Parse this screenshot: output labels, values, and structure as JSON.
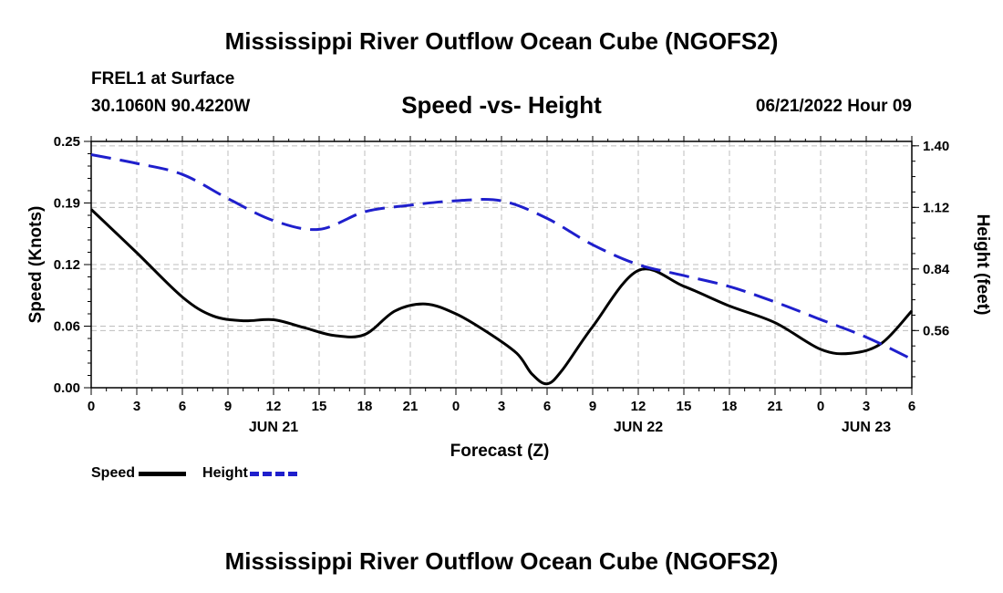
{
  "header": {
    "title": "Mississippi River Outflow Ocean Cube (NGOFS2)",
    "station": "FREL1 at Surface",
    "coords": "30.1060N  90.4220W",
    "date": "06/21/2022 Hour 09"
  },
  "footer": {
    "title_repeat": "Mississippi River Outflow Ocean Cube (NGOFS2)"
  },
  "legend": {
    "speed_label": "Speed",
    "height_label": "Height",
    "speed_color": "#000000",
    "height_color": "#1f1fcc"
  },
  "chart_data": {
    "type": "line",
    "title": "Speed -vs- Height",
    "xlabel": "Forecast (Z)",
    "ylabel": "Speed (Knots)",
    "y2label": "Height (feet)",
    "xlim": [
      0,
      54
    ],
    "ylim": [
      0,
      0.25
    ],
    "y2lim": [
      0.3,
      1.42
    ],
    "x_ticks": [
      {
        "x": 0,
        "label": "0"
      },
      {
        "x": 3,
        "label": "3"
      },
      {
        "x": 6,
        "label": "6"
      },
      {
        "x": 9,
        "label": "9"
      },
      {
        "x": 12,
        "label": "12"
      },
      {
        "x": 15,
        "label": "15"
      },
      {
        "x": 18,
        "label": "18"
      },
      {
        "x": 21,
        "label": "21"
      },
      {
        "x": 24,
        "label": "0"
      },
      {
        "x": 27,
        "label": "3"
      },
      {
        "x": 30,
        "label": "6"
      },
      {
        "x": 33,
        "label": "9"
      },
      {
        "x": 36,
        "label": "12"
      },
      {
        "x": 39,
        "label": "15"
      },
      {
        "x": 42,
        "label": "18"
      },
      {
        "x": 45,
        "label": "21"
      },
      {
        "x": 48,
        "label": "0"
      },
      {
        "x": 51,
        "label": "3"
      },
      {
        "x": 54,
        "label": "6"
      }
    ],
    "day_labels": [
      {
        "x": 12,
        "label": "JUN 21"
      },
      {
        "x": 36,
        "label": "JUN 22"
      },
      {
        "x": 51,
        "label": "JUN 23"
      }
    ],
    "y_ticks": [
      {
        "v": 0.0,
        "label": "0.00"
      },
      {
        "v": 0.0625,
        "label": "0.06"
      },
      {
        "v": 0.125,
        "label": "0.12"
      },
      {
        "v": 0.1875,
        "label": "0.19"
      },
      {
        "v": 0.25,
        "label": "0.25"
      }
    ],
    "y2_ticks": [
      {
        "v": 0.56,
        "label": "0.56"
      },
      {
        "v": 0.84,
        "label": "0.84"
      },
      {
        "v": 1.12,
        "label": "1.12"
      },
      {
        "v": 1.4,
        "label": "1.40"
      }
    ],
    "series": [
      {
        "name": "Speed",
        "axis": "left",
        "style": "solid",
        "color": "#000000",
        "x": [
          0,
          3,
          6,
          8,
          10,
          12,
          14,
          16,
          18,
          20,
          22,
          24,
          26,
          28,
          29,
          30,
          31,
          33,
          36,
          39,
          42,
          45,
          48,
          50,
          52,
          54
        ],
        "values": [
          0.181,
          0.137,
          0.092,
          0.073,
          0.068,
          0.069,
          0.061,
          0.053,
          0.054,
          0.078,
          0.085,
          0.075,
          0.057,
          0.035,
          0.014,
          0.004,
          0.018,
          0.062,
          0.119,
          0.103,
          0.083,
          0.066,
          0.039,
          0.035,
          0.045,
          0.078
        ]
      },
      {
        "name": "Height",
        "axis": "right",
        "style": "dashed",
        "color": "#1f1fcc",
        "x": [
          0,
          3,
          6,
          9,
          12,
          15,
          18,
          21,
          24,
          27,
          30,
          33,
          36,
          39,
          42,
          45,
          48,
          51,
          54
        ],
        "values": [
          1.36,
          1.32,
          1.27,
          1.16,
          1.06,
          1.02,
          1.1,
          1.13,
          1.15,
          1.15,
          1.07,
          0.95,
          0.86,
          0.81,
          0.76,
          0.69,
          0.61,
          0.53,
          0.43
        ]
      }
    ]
  }
}
